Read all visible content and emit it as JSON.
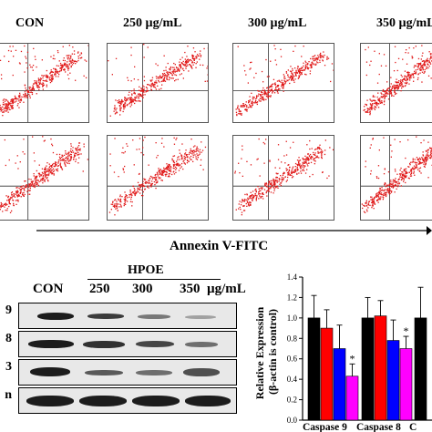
{
  "flow": {
    "groups": [
      "CON",
      "250 µg/mL",
      "300 µg/mL",
      "350 µg/mL"
    ],
    "xlabel": "Annexin V-FITC"
  },
  "blot": {
    "group_label": "HPOE",
    "lanes": [
      "CON",
      "250",
      "300",
      "350"
    ],
    "unit": "µg/mL",
    "row_labels": [
      "9",
      "8",
      "3",
      "n"
    ]
  },
  "chart_data": {
    "type": "bar",
    "ylabel": "Relative Expression\n(β-actin is control)",
    "categories": [
      "Caspase 9",
      "Caspase 8",
      "C"
    ],
    "ylim": [
      0.0,
      1.4
    ],
    "yticks": [
      "0.0",
      "0.2",
      "0.4",
      "0.6",
      "0.8",
      "1.0",
      "1.2",
      "1.4"
    ],
    "series": [
      {
        "color": "#000000",
        "values": [
          1.0,
          1.0,
          1.0
        ],
        "errors": [
          0.22,
          0.2,
          0.3
        ]
      },
      {
        "color": "#ff0000",
        "values": [
          0.9,
          1.02,
          null
        ],
        "errors": [
          0.18,
          0.15,
          null
        ]
      },
      {
        "color": "#0000ff",
        "values": [
          0.7,
          0.78,
          null
        ],
        "errors": [
          0.23,
          0.2,
          null
        ]
      },
      {
        "color": "#ff00ff",
        "values": [
          0.43,
          0.7,
          null
        ],
        "errors": [
          0.12,
          0.12,
          null
        ]
      }
    ],
    "significance": [
      {
        "category": "Caspase 9",
        "series": 3,
        "mark": "*"
      },
      {
        "category": "Caspase 8",
        "series": 3,
        "mark": "*"
      }
    ]
  }
}
